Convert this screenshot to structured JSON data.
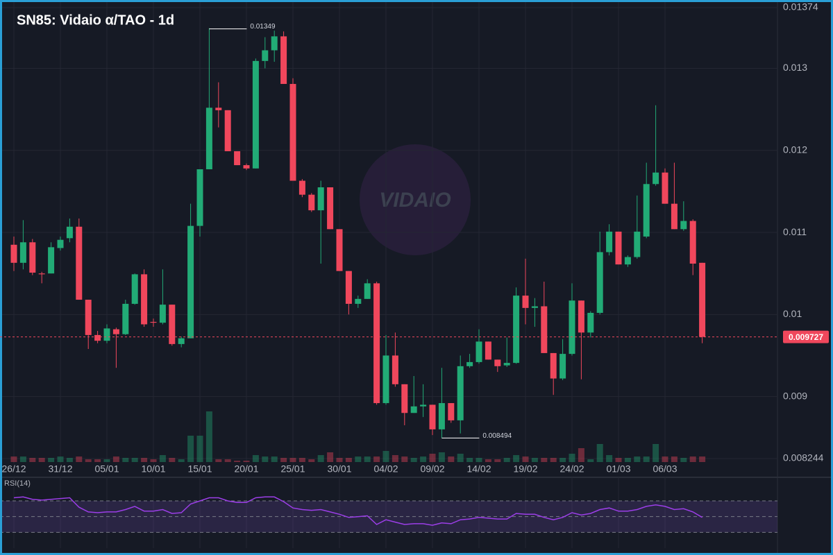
{
  "chart_data": {
    "type": "candlestick",
    "title": "SN85: Vidaio α/TAO - 1d",
    "watermark": "VIDAIO",
    "categories": [
      "26/12",
      null,
      null,
      null,
      null,
      "31/12",
      null,
      null,
      null,
      null,
      "05/01",
      null,
      null,
      null,
      null,
      "10/01",
      null,
      null,
      null,
      null,
      "15/01",
      null,
      null,
      null,
      null,
      "20/01",
      null,
      null,
      null,
      null,
      "25/01",
      null,
      null,
      null,
      null,
      "30/01",
      null,
      null,
      null,
      null,
      "04/02",
      null,
      null,
      null,
      null,
      "09/02",
      null,
      null,
      null,
      null,
      "14/02",
      null,
      null,
      null,
      null,
      "19/02",
      null,
      null,
      null,
      null,
      "24/02",
      null,
      null,
      null,
      null,
      "01/03",
      null,
      null,
      null,
      null,
      "06/03",
      null,
      null,
      null,
      null
    ],
    "open": [
      0.01085,
      0.01063,
      0.01088,
      0.0105,
      0.0105,
      0.01081,
      0.01093,
      0.01107,
      0.01018,
      0.00975,
      0.00968,
      0.00982,
      0.00976,
      0.01013,
      0.01049,
      0.00991,
      0.0099,
      0.01012,
      0.00964,
      0.00971,
      0.01108,
      0.01177,
      0.01252,
      0.01249,
      0.01199,
      0.01182,
      0.01178,
      0.01309,
      0.01322,
      0.01339,
      0.01281,
      0.01163,
      0.01146,
      0.01127,
      0.01155,
      0.01104,
      0.01053,
      0.01013,
      0.01019,
      0.01038,
      0.00892,
      0.0095,
      0.00915,
      0.0088,
      0.00888,
      0.0089,
      0.0086,
      0.00892,
      0.00871,
      0.00937,
      0.00942,
      0.00967,
      0.00945,
      0.00938,
      0.00941,
      0.01023,
      0.01008,
      0.0101,
      0.00953,
      0.00922,
      0.00952,
      0.01017,
      0.00978,
      0.01002,
      0.01076,
      0.01101,
      0.01061,
      0.0107,
      0.01095,
      0.01159,
      0.01173,
      0.01135,
      0.01104,
      0.01114,
      0.01063
    ],
    "high": [
      0.01095,
      0.01115,
      0.01092,
      0.01052,
      0.01088,
      0.01095,
      0.01117,
      0.01117,
      0.01018,
      0.0098,
      0.00988,
      0.00984,
      0.01018,
      0.0105,
      0.01055,
      0.00995,
      0.01055,
      0.01012,
      0.00973,
      0.01135,
      0.01177,
      0.01349,
      0.01283,
      0.01249,
      0.01199,
      0.01184,
      0.01312,
      0.01338,
      0.01346,
      0.01345,
      0.01288,
      0.01165,
      0.01148,
      0.01163,
      0.01155,
      0.01104,
      0.01053,
      0.01023,
      0.01043,
      0.0104,
      0.00975,
      0.00978,
      0.00915,
      0.00925,
      0.00915,
      0.0089,
      0.00935,
      0.00892,
      0.0095,
      0.00952,
      0.00982,
      0.00967,
      0.00945,
      0.00972,
      0.01033,
      0.01068,
      0.0102,
      0.0104,
      0.00953,
      0.0097,
      0.01038,
      0.01017,
      0.01004,
      0.01101,
      0.0111,
      0.01101,
      0.01072,
      0.01145,
      0.01185,
      0.01255,
      0.01178,
      0.01185,
      0.01138,
      0.01116,
      0.01063
    ],
    "low": [
      0.01053,
      0.01055,
      0.01048,
      0.01038,
      0.0105,
      0.01078,
      0.01088,
      0.01018,
      0.00958,
      0.00965,
      0.00965,
      0.00935,
      0.00975,
      0.01012,
      0.00985,
      0.00985,
      0.00988,
      0.00962,
      0.0096,
      0.00971,
      0.01095,
      0.01177,
      0.01228,
      0.01199,
      0.01182,
      0.01176,
      0.01178,
      0.013,
      0.01308,
      0.01281,
      0.01163,
      0.01143,
      0.01125,
      0.01062,
      0.01104,
      0.01053,
      0.01,
      0.01008,
      0.01019,
      0.0089,
      0.0089,
      0.00912,
      0.00865,
      0.0088,
      0.00875,
      0.00853,
      0.008494,
      0.00868,
      0.00855,
      0.00935,
      0.0094,
      0.00945,
      0.0093,
      0.00936,
      0.0094,
      0.00988,
      0.00985,
      0.00953,
      0.00902,
      0.0092,
      0.0095,
      0.00921,
      0.00972,
      0.01,
      0.01072,
      0.01061,
      0.01058,
      0.01068,
      0.01093,
      0.01157,
      0.01135,
      0.01104,
      0.01102,
      0.01048,
      0.00965
    ],
    "close": [
      0.01063,
      0.01088,
      0.01051,
      0.01049,
      0.01082,
      0.01091,
      0.01107,
      0.01018,
      0.00975,
      0.00968,
      0.00983,
      0.00976,
      0.01013,
      0.01049,
      0.00988,
      0.0099,
      0.01012,
      0.00964,
      0.00971,
      0.01108,
      0.01177,
      0.01252,
      0.01249,
      0.01199,
      0.01182,
      0.01178,
      0.01309,
      0.01322,
      0.01339,
      0.01281,
      0.01163,
      0.01146,
      0.01127,
      0.01155,
      0.01104,
      0.01053,
      0.01013,
      0.01019,
      0.01038,
      0.00892,
      0.0095,
      0.00915,
      0.0088,
      0.00888,
      0.0089,
      0.0086,
      0.00892,
      0.00871,
      0.00937,
      0.00942,
      0.00967,
      0.00945,
      0.00937,
      0.00941,
      0.01023,
      0.01008,
      0.0101,
      0.00953,
      0.00922,
      0.00952,
      0.01017,
      0.00978,
      0.01002,
      0.01076,
      0.01101,
      0.01061,
      0.0107,
      0.01101,
      0.01159,
      0.01173,
      0.01135,
      0.01104,
      0.01114,
      0.01062,
      0.009727
    ],
    "volume": [
      8,
      8,
      6,
      6,
      6,
      8,
      6,
      8,
      4,
      4,
      4,
      8,
      6,
      6,
      6,
      4,
      10,
      6,
      4,
      38,
      38,
      73,
      4,
      4,
      2,
      2,
      10,
      8,
      8,
      6,
      6,
      6,
      4,
      10,
      14,
      6,
      6,
      8,
      8,
      8,
      16,
      10,
      8,
      6,
      8,
      12,
      14,
      8,
      12,
      6,
      6,
      4,
      4,
      6,
      10,
      8,
      6,
      6,
      6,
      6,
      12,
      20,
      4,
      26,
      10,
      6,
      6,
      8,
      8,
      26,
      8,
      8,
      6,
      8,
      8
    ],
    "volume_ylim": [
      0,
      100
    ],
    "up_color": "#22ab76",
    "down_color": "#f0475c",
    "ylim": [
      0.008244,
      0.01374
    ],
    "yticks": [
      0.008244,
      0.009,
      0.01,
      0.011,
      0.012,
      0.013,
      0.01374
    ],
    "last_price": 0.009727,
    "high_marker": 21,
    "low_marker": 46,
    "grid": true,
    "rsi": {
      "label": "RSI(14)",
      "color": "#9c3ee8",
      "ylim": [
        10,
        100
      ],
      "bands": [
        30,
        50,
        70
      ],
      "values": [
        74,
        75,
        72,
        71,
        72,
        73,
        74,
        62,
        56,
        55,
        56,
        56,
        59,
        63,
        57,
        57,
        59,
        54,
        55,
        66,
        70,
        74,
        74,
        70,
        68,
        68,
        74,
        75,
        75,
        69,
        61,
        59,
        58,
        59,
        56,
        53,
        49,
        50,
        51,
        40,
        46,
        43,
        40,
        41,
        41,
        39,
        42,
        41,
        46,
        47,
        49,
        48,
        47,
        47,
        54,
        53,
        53,
        49,
        46,
        49,
        55,
        52,
        54,
        59,
        61,
        57,
        57,
        59,
        63,
        65,
        63,
        59,
        60,
        56,
        49
      ]
    }
  }
}
